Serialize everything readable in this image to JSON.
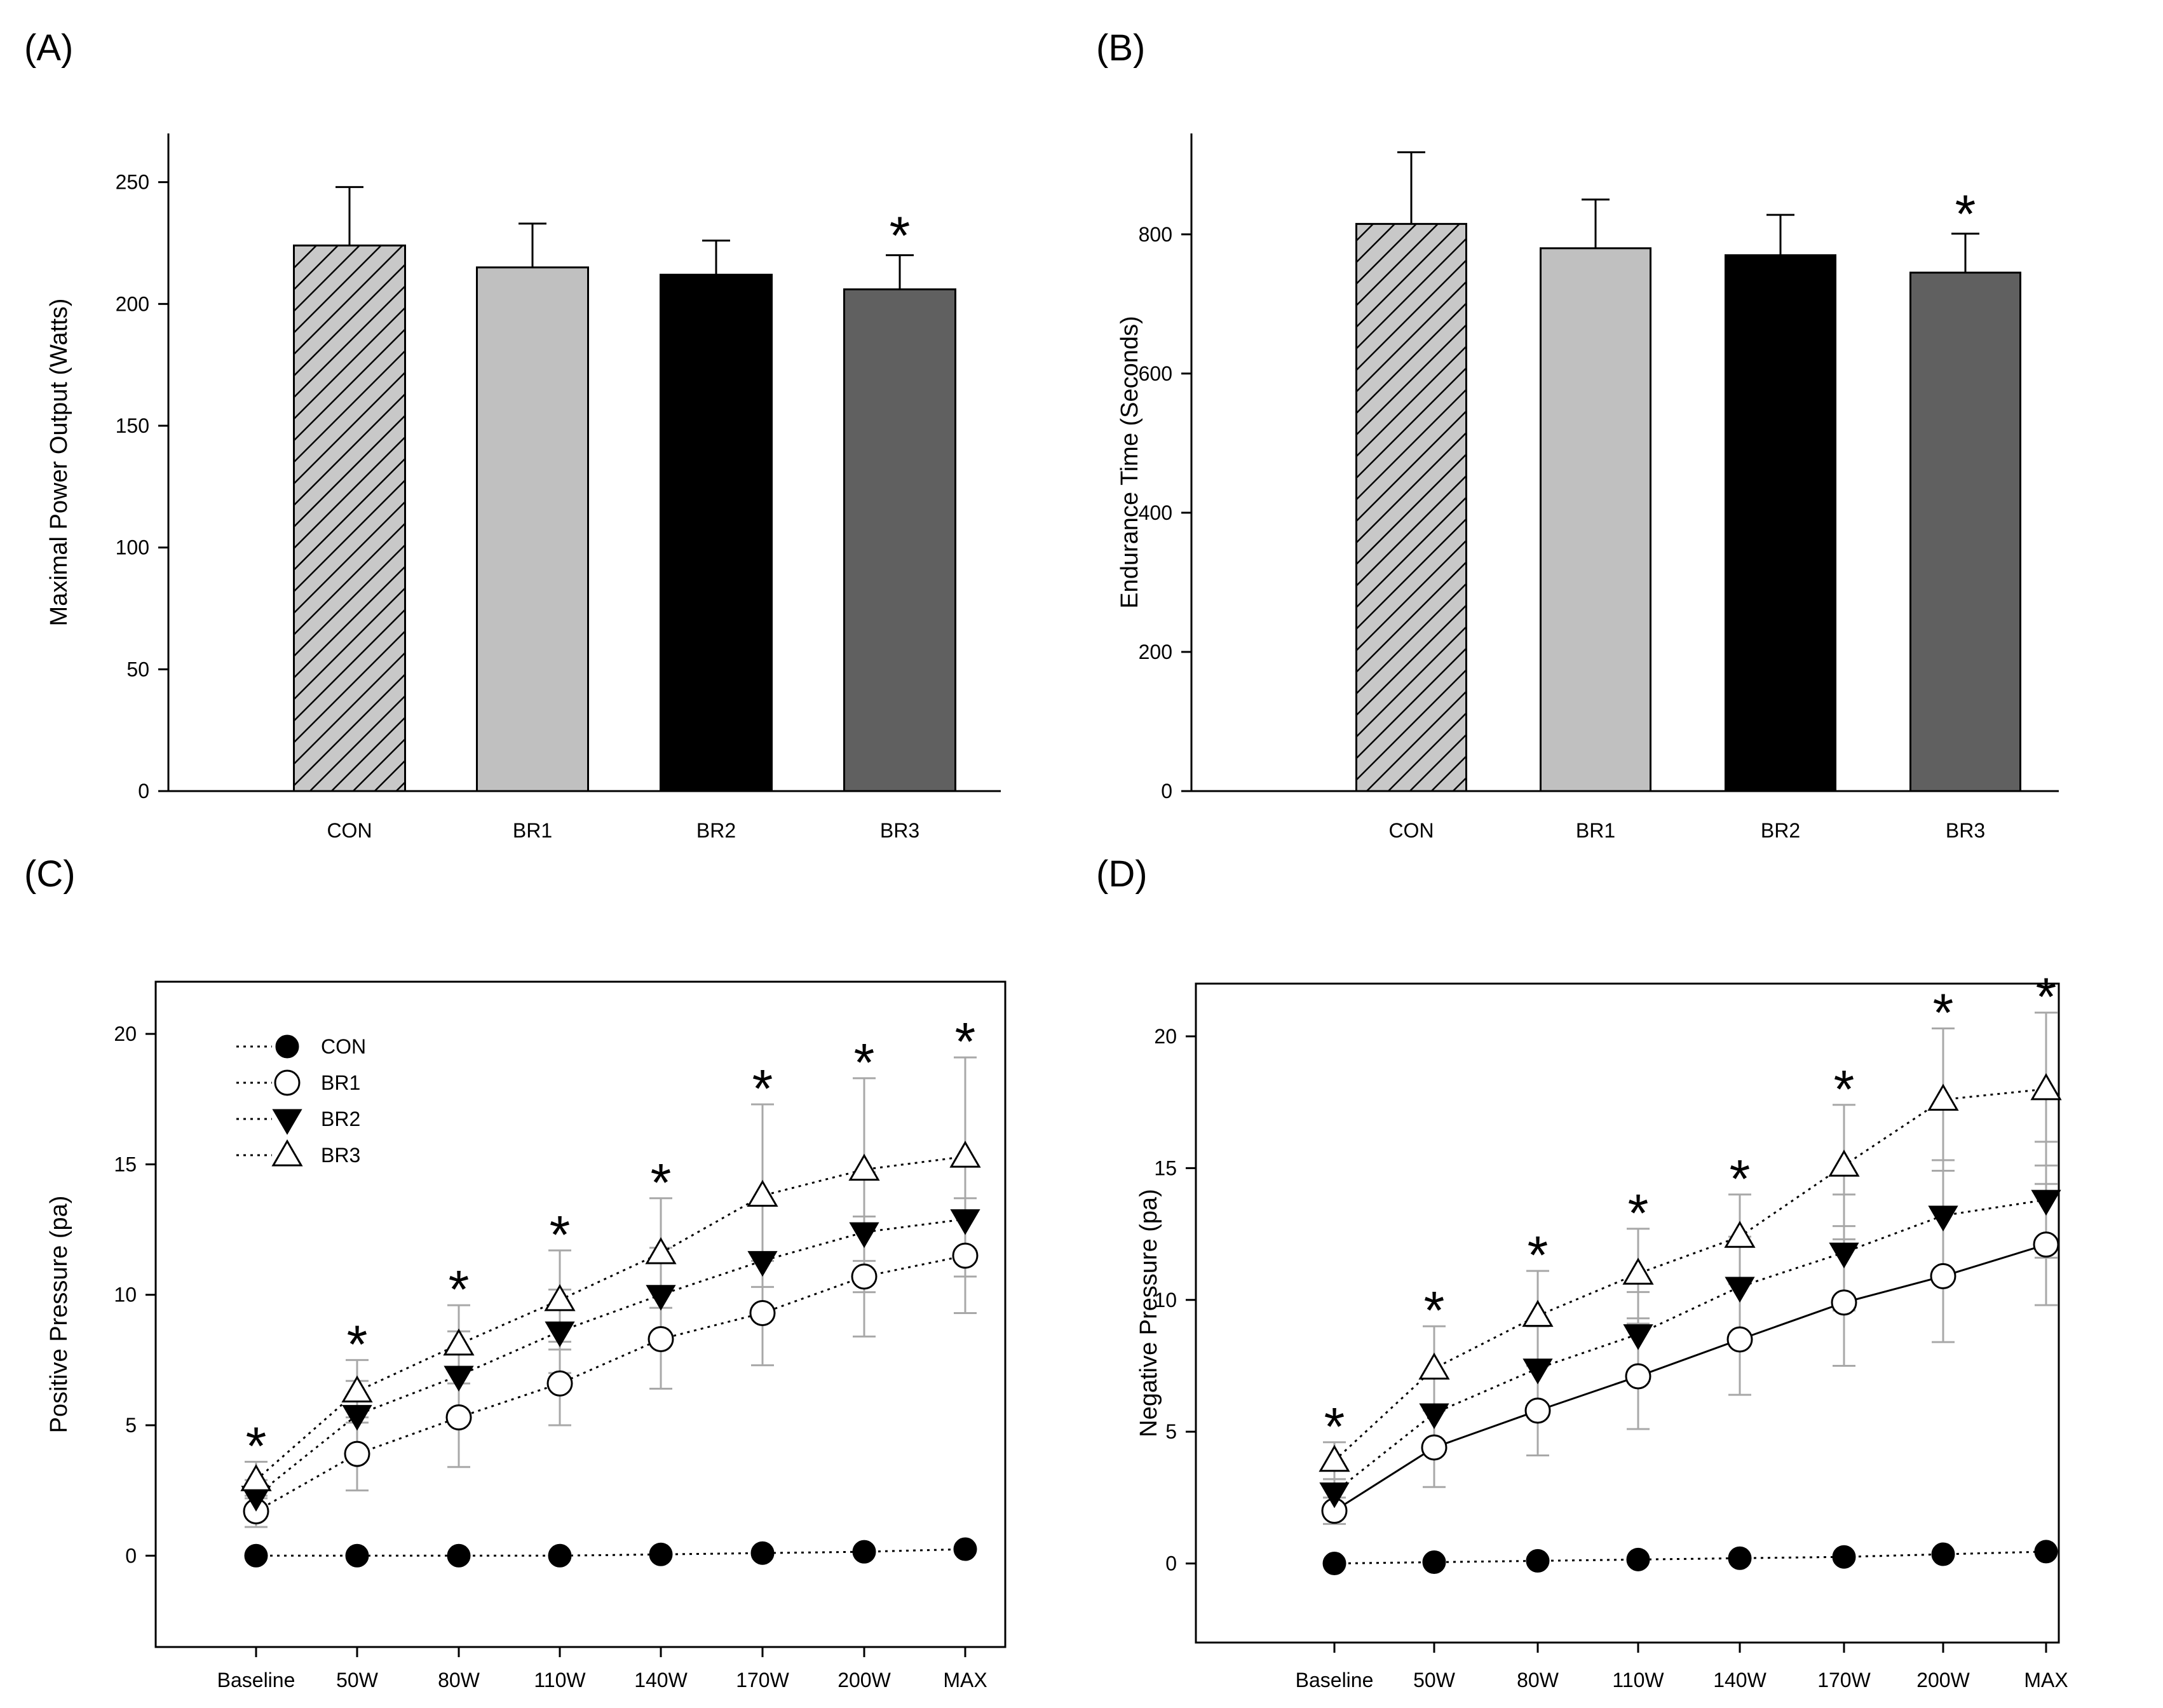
{
  "chart_data": [
    {
      "panel": "(A)",
      "type": "bar",
      "title": "",
      "xlabel": "",
      "ylabel": "Maximal Power Output (Watts)",
      "ylim": [
        0,
        270
      ],
      "yticks": [
        0,
        50,
        100,
        150,
        200,
        250
      ],
      "categories": [
        "CON",
        "BR1",
        "BR2",
        "BR3"
      ],
      "values": [
        224,
        215,
        212,
        206
      ],
      "errors": [
        24,
        18,
        14,
        14
      ],
      "fills": [
        "hatch",
        "#c0c0c0",
        "#000000",
        "#606060"
      ],
      "annotations": [
        {
          "category": "BR3",
          "text": "*"
        }
      ]
    },
    {
      "panel": "(B)",
      "type": "bar",
      "title": "",
      "xlabel": "",
      "ylabel": "Endurance Time (Seconds)",
      "ylim": [
        0,
        945
      ],
      "yticks": [
        0,
        200,
        400,
        600,
        800
      ],
      "categories": [
        "CON",
        "BR1",
        "BR2",
        "BR3"
      ],
      "values": [
        815,
        780,
        770,
        745
      ],
      "errors": [
        103,
        70,
        58,
        56
      ],
      "fills": [
        "hatch",
        "#c0c0c0",
        "#000000",
        "#606060"
      ],
      "annotations": [
        {
          "category": "BR3",
          "text": "*"
        }
      ]
    },
    {
      "panel": "(C)",
      "type": "line",
      "title": "",
      "xlabel": "",
      "ylabel": "Positive Pressure (pa)",
      "ylim": [
        -3.5,
        22
      ],
      "yticks": [
        0,
        5,
        10,
        15,
        20
      ],
      "categories": [
        "Baseline",
        "50W",
        "80W",
        "110W",
        "140W",
        "170W",
        "200W",
        "MAX"
      ],
      "legend": "top-left",
      "series": [
        {
          "name": "CON",
          "marker": "filled-circle",
          "line": "dotted",
          "values": [
            0.0,
            0.0,
            0.0,
            0.0,
            0.05,
            0.1,
            0.15,
            0.25
          ],
          "errors": [
            0,
            0,
            0,
            0,
            0,
            0,
            0,
            0
          ]
        },
        {
          "name": "BR1",
          "marker": "open-circle",
          "line": "dotted",
          "values": [
            1.7,
            3.9,
            5.3,
            6.6,
            8.3,
            9.3,
            10.7,
            11.5
          ],
          "errors": [
            0.6,
            1.4,
            1.9,
            1.6,
            1.9,
            2.0,
            2.3,
            2.2
          ]
        },
        {
          "name": "BR2",
          "marker": "filled-triangle-down",
          "line": "dotted",
          "values": [
            2.3,
            5.4,
            6.9,
            8.6,
            10.0,
            11.3,
            12.4,
            12.9
          ],
          "errors": [
            0.6,
            1.3,
            1.7,
            1.6,
            1.8,
            2.2,
            2.3,
            2.2
          ]
        },
        {
          "name": "BR3",
          "marker": "open-triangle-up",
          "line": "dotted",
          "values": [
            2.9,
            6.3,
            8.1,
            9.8,
            11.6,
            13.8,
            14.8,
            15.3
          ],
          "errors": [
            0.7,
            1.2,
            1.5,
            1.9,
            2.1,
            3.5,
            3.5,
            3.8
          ]
        }
      ],
      "annotations": [
        {
          "category": "Baseline",
          "text": "*"
        },
        {
          "category": "50W",
          "text": "*"
        },
        {
          "category": "80W",
          "text": "*"
        },
        {
          "category": "110W",
          "text": "*"
        },
        {
          "category": "140W",
          "text": "*"
        },
        {
          "category": "170W",
          "text": "*"
        },
        {
          "category": "200W",
          "text": "*"
        },
        {
          "category": "MAX",
          "text": "*"
        }
      ]
    },
    {
      "panel": "(D)",
      "type": "line",
      "title": "",
      "xlabel": "",
      "ylabel": "Negative Pressure (pa)",
      "ylim": [
        -3.0,
        22.0
      ],
      "yticks": [
        0,
        5,
        10,
        15,
        20
      ],
      "categories": [
        "Baseline",
        "50W",
        "80W",
        "110W",
        "140W",
        "170W",
        "200W",
        "MAX"
      ],
      "legend": "none",
      "series": [
        {
          "name": "CON",
          "marker": "filled-circle",
          "line": "dotted",
          "values": [
            0.0,
            0.05,
            0.1,
            0.15,
            0.2,
            0.25,
            0.35,
            0.45
          ],
          "errors": [
            0,
            0,
            0,
            0,
            0,
            0,
            0,
            0
          ]
        },
        {
          "name": "BR1",
          "marker": "open-circle",
          "line": "solid",
          "values": [
            2.0,
            4.4,
            5.8,
            7.1,
            8.5,
            9.9,
            10.9,
            12.1
          ],
          "errors": [
            0.5,
            1.5,
            1.7,
            2.0,
            2.1,
            2.4,
            2.5,
            2.3
          ]
        },
        {
          "name": "BR2",
          "marker": "filled-triangle-down",
          "line": "dotted",
          "values": [
            2.7,
            5.7,
            7.4,
            8.7,
            10.5,
            11.8,
            13.2,
            13.8
          ],
          "errors": [
            0.5,
            1.4,
            1.6,
            1.6,
            1.9,
            2.2,
            2.1,
            2.2
          ]
        },
        {
          "name": "BR3",
          "marker": "open-triangle-up",
          "line": "dotted",
          "values": [
            3.9,
            7.4,
            9.4,
            11.0,
            12.4,
            15.1,
            17.6,
            18.0
          ],
          "errors": [
            0.7,
            1.6,
            1.7,
            1.7,
            1.6,
            2.3,
            2.7,
            2.9
          ]
        }
      ],
      "annotations": [
        {
          "category": "Baseline",
          "text": "*"
        },
        {
          "category": "50W",
          "text": "*"
        },
        {
          "category": "80W",
          "text": "*"
        },
        {
          "category": "110W",
          "text": "*"
        },
        {
          "category": "140W",
          "text": "*"
        },
        {
          "category": "170W",
          "text": "*"
        },
        {
          "category": "200W",
          "text": "*"
        },
        {
          "category": "MAX",
          "text": "*"
        }
      ]
    }
  ]
}
